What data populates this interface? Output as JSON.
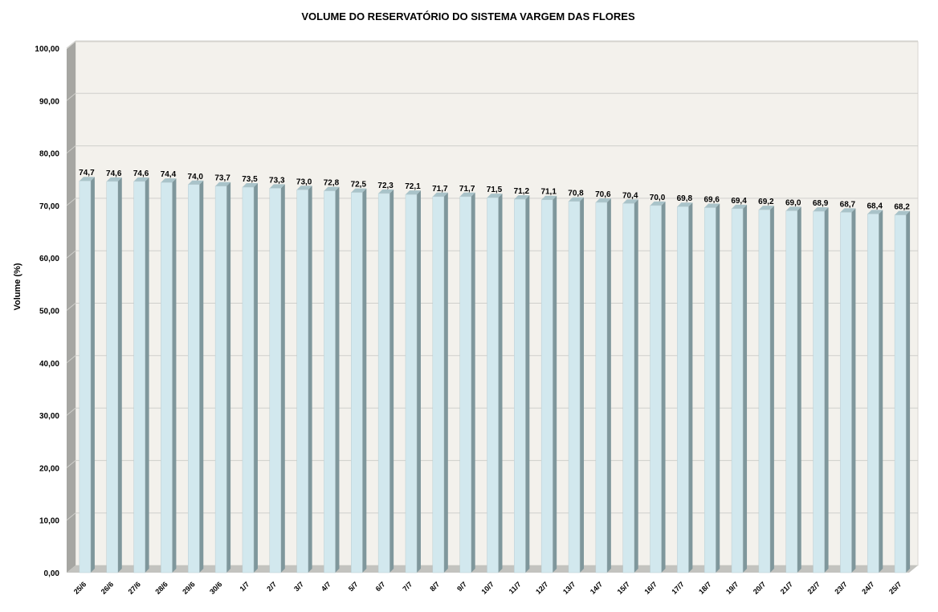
{
  "chart_data": {
    "type": "bar",
    "title": "VOLUME DO RESERVATÓRIO DO SISTEMA VARGEM DAS FLORES",
    "ylabel": "Volume (%)",
    "xlabel": "",
    "ylim": [
      0,
      100
    ],
    "yticks": [
      "0,00",
      "10,00",
      "20,00",
      "30,00",
      "40,00",
      "50,00",
      "60,00",
      "70,00",
      "80,00",
      "90,00",
      "100,00"
    ],
    "grid": true,
    "legend": "none",
    "categories": [
      "25/6",
      "26/6",
      "27/6",
      "28/6",
      "29/6",
      "30/6",
      "1/7",
      "2/7",
      "3/7",
      "4/7",
      "5/7",
      "6/7",
      "7/7",
      "8/7",
      "9/7",
      "10/7",
      "11/7",
      "12/7",
      "13/7",
      "14/7",
      "15/7",
      "16/7",
      "17/7",
      "18/7",
      "19/7",
      "20/7",
      "21/7",
      "22/7",
      "23/7",
      "24/7",
      "25/7"
    ],
    "values": [
      74.7,
      74.6,
      74.6,
      74.4,
      74.0,
      73.7,
      73.5,
      73.3,
      73.0,
      72.8,
      72.5,
      72.3,
      72.1,
      71.7,
      71.7,
      71.5,
      71.2,
      71.1,
      70.8,
      70.6,
      70.4,
      70.0,
      69.8,
      69.6,
      69.4,
      69.2,
      69.0,
      68.9,
      68.7,
      68.4,
      68.2
    ],
    "labels": [
      "74,7",
      "74,6",
      "74,6",
      "74,4",
      "74,0",
      "73,7",
      "73,5",
      "73,3",
      "73,0",
      "72,8",
      "72,5",
      "72,3",
      "72,1",
      "71,7",
      "71,7",
      "71,5",
      "71,2",
      "71,1",
      "70,8",
      "70,6",
      "70,4",
      "70,0",
      "69,8",
      "69,6",
      "69,4",
      "69,2",
      "69,0",
      "68,9",
      "68,7",
      "68,4",
      "68,2"
    ],
    "colors": {
      "bar_front": "#d2e8ee",
      "bar_side": "#7f979c",
      "bar_top": "#a9c3c9",
      "plot_background": "#f3f1ec",
      "side_wall": "#a6a6a2",
      "floor": "#c3c3bf",
      "gridline": "#cfcfcb"
    }
  }
}
